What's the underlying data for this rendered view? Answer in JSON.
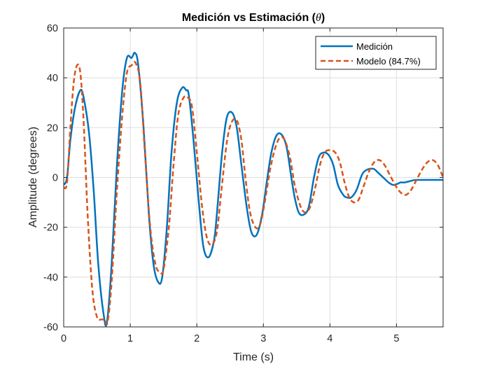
{
  "colors": {
    "medicion": "#0072BD",
    "modelo": "#D95319",
    "grid": "#dedede",
    "axis": "#262626"
  },
  "chart_data": {
    "type": "line",
    "title_main": "Medición vs Estimación (",
    "title_symbol": "θ",
    "title_end": ")",
    "xlabel": "Time (s)",
    "ylabel": "Amplitude (degrees)",
    "xlim": [
      0,
      5.7
    ],
    "ylim": [
      -60,
      60
    ],
    "xticks": [
      0,
      1,
      2,
      3,
      4,
      5
    ],
    "yticks": [
      -60,
      -40,
      -20,
      0,
      20,
      40,
      60
    ],
    "x_tick_labels": [
      "0",
      "1",
      "2",
      "3",
      "4",
      "5"
    ],
    "y_tick_labels": [
      "-60",
      "-40",
      "-20",
      "0",
      "20",
      "40",
      "60"
    ],
    "grid": true,
    "legend_position": "top-right",
    "series": [
      {
        "name": "Medición",
        "style": "solid",
        "x": [
          0,
          0.05,
          0.1,
          0.17,
          0.25,
          0.3,
          0.38,
          0.45,
          0.52,
          0.6,
          0.65,
          0.72,
          0.8,
          0.88,
          0.95,
          1.02,
          1.07,
          1.12,
          1.2,
          1.28,
          1.35,
          1.42,
          1.48,
          1.55,
          1.62,
          1.7,
          1.78,
          1.84,
          1.88,
          1.95,
          2.03,
          2.1,
          2.18,
          2.26,
          2.3,
          2.38,
          2.45,
          2.53,
          2.6,
          2.67,
          2.75,
          2.82,
          2.9,
          2.98,
          3.05,
          3.12,
          3.2,
          3.28,
          3.35,
          3.42,
          3.47,
          3.53,
          3.6,
          3.68,
          3.76,
          3.83,
          3.9,
          3.98,
          4.05,
          4.12,
          4.2,
          4.25,
          4.32,
          4.4,
          4.48,
          4.55,
          4.65,
          4.72,
          4.8,
          4.88,
          4.95,
          5.02,
          5.06,
          5.12,
          5.2,
          5.28,
          5.36,
          5.45,
          5.55,
          5.65,
          5.7
        ],
        "y": [
          -3,
          0,
          15,
          28,
          35,
          32,
          18,
          -5,
          -35,
          -55,
          -58,
          -35,
          5,
          35,
          48,
          48,
          50,
          45,
          20,
          -15,
          -35,
          -42,
          -40,
          -20,
          10,
          30,
          36,
          35,
          33,
          15,
          -10,
          -28,
          -32,
          -25,
          -15,
          10,
          24,
          26,
          20,
          5,
          -12,
          -22,
          -23,
          -15,
          -2,
          10,
          17,
          17,
          12,
          0,
          -8,
          -14,
          -15,
          -12,
          0,
          8,
          10,
          9,
          5,
          -3,
          -7,
          -8,
          -8,
          -5,
          1,
          3,
          3.5,
          2,
          0,
          -2,
          -3,
          -2.5,
          -2,
          -2,
          -1.5,
          -1,
          -1,
          -1,
          -1,
          -1,
          -1
        ]
      },
      {
        "name": "Modelo (84.7%)",
        "style": "dashed",
        "x": [
          0,
          0.05,
          0.1,
          0.15,
          0.2,
          0.25,
          0.3,
          0.36,
          0.43,
          0.5,
          0.57,
          0.62,
          0.66,
          0.72,
          0.8,
          0.88,
          0.95,
          1.02,
          1.08,
          1.15,
          1.22,
          1.3,
          1.38,
          1.45,
          1.5,
          1.58,
          1.65,
          1.72,
          1.8,
          1.87,
          1.93,
          2.0,
          2.08,
          2.15,
          2.22,
          2.3,
          2.37,
          2.45,
          2.52,
          2.6,
          2.67,
          2.73,
          2.8,
          2.88,
          2.95,
          3.02,
          3.1,
          3.18,
          3.25,
          3.32,
          3.4,
          3.47,
          3.55,
          3.62,
          3.7,
          3.78,
          3.85,
          3.92,
          4.0,
          4.08,
          4.15,
          4.22,
          4.29,
          4.36,
          4.43,
          4.5,
          4.58,
          4.66,
          4.74,
          4.82,
          4.9,
          4.98,
          5.06,
          5.14,
          5.22,
          5.3,
          5.38,
          5.46,
          5.54,
          5.62,
          5.7
        ],
        "y": [
          -4,
          -2,
          20,
          38,
          45,
          42,
          22,
          -15,
          -45,
          -56,
          -57,
          -57,
          -58,
          -42,
          -5,
          25,
          42,
          45,
          46,
          38,
          10,
          -20,
          -35,
          -38,
          -37,
          -20,
          5,
          25,
          32,
          32,
          28,
          10,
          -12,
          -24,
          -27,
          -22,
          -5,
          14,
          22,
          23,
          15,
          0,
          -14,
          -20,
          -19,
          -10,
          3,
          12,
          16,
          15,
          8,
          -3,
          -11,
          -14,
          -12,
          -4,
          5,
          10,
          11,
          10,
          6,
          -2,
          -8,
          -10,
          -9,
          -4,
          2,
          6,
          7,
          5,
          1,
          -3,
          -6,
          -7,
          -5,
          -1,
          3,
          6,
          7,
          5,
          0
        ]
      }
    ]
  }
}
